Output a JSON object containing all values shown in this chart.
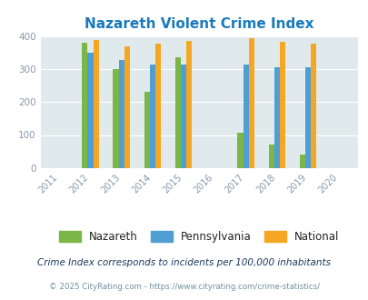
{
  "title": "Nazareth Violent Crime Index",
  "title_color": "#1a7abf",
  "all_years": [
    2011,
    2012,
    2013,
    2014,
    2015,
    2016,
    2017,
    2018,
    2019,
    2020
  ],
  "data_years": [
    2012,
    2013,
    2014,
    2015,
    2017,
    2018,
    2019
  ],
  "nazareth": [
    380,
    300,
    230,
    335,
    107,
    70,
    40
  ],
  "pennsylvania": [
    350,
    328,
    313,
    313,
    314,
    305,
    305
  ],
  "national": [
    388,
    368,
    376,
    384,
    393,
    381,
    378
  ],
  "nazareth_color": "#7ab648",
  "pennsylvania_color": "#4f9fd4",
  "national_color": "#f5a623",
  "plot_bg_color": "#e0eaec",
  "ylim": [
    0,
    400
  ],
  "yticks": [
    0,
    100,
    200,
    300,
    400
  ],
  "legend_labels": [
    "Nazareth",
    "Pennsylvania",
    "National"
  ],
  "footnote1": "Crime Index corresponds to incidents per 100,000 inhabitants",
  "footnote2": "© 2025 CityRating.com - https://www.cityrating.com/crime-statistics/",
  "footnote1_color": "#1a3a5c",
  "footnote2_color": "#7090a0",
  "bar_width": 0.18
}
